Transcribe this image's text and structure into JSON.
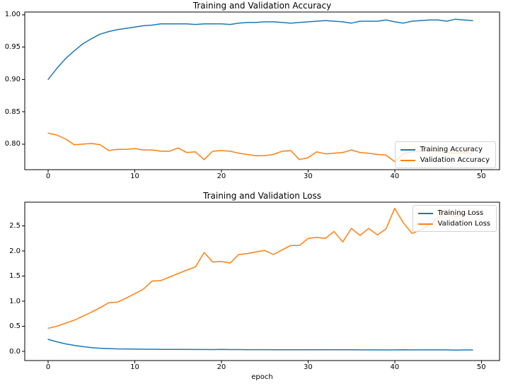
{
  "figure": {
    "background": "#ffffff",
    "accent_blue": "#1f77b4",
    "accent_orange": "#ff7f0e"
  },
  "chart_data": [
    {
      "type": "line",
      "title": "Training and Validation Accuracy",
      "xlabel": "",
      "ylabel": "",
      "x": [
        0,
        1,
        2,
        3,
        4,
        5,
        6,
        7,
        8,
        9,
        10,
        11,
        12,
        13,
        14,
        15,
        16,
        17,
        18,
        19,
        20,
        21,
        22,
        23,
        24,
        25,
        26,
        27,
        28,
        29,
        30,
        31,
        32,
        33,
        34,
        35,
        36,
        37,
        38,
        39,
        40,
        41,
        42,
        43,
        44,
        45,
        46,
        47,
        48,
        49
      ],
      "series": [
        {
          "name": "Training Accuracy",
          "color": "#1f77b4",
          "values": [
            0.9,
            0.917,
            0.932,
            0.944,
            0.955,
            0.963,
            0.97,
            0.974,
            0.977,
            0.979,
            0.981,
            0.983,
            0.984,
            0.986,
            0.986,
            0.986,
            0.986,
            0.985,
            0.986,
            0.986,
            0.986,
            0.985,
            0.987,
            0.988,
            0.988,
            0.989,
            0.989,
            0.988,
            0.987,
            0.988,
            0.989,
            0.99,
            0.991,
            0.99,
            0.989,
            0.987,
            0.99,
            0.99,
            0.99,
            0.992,
            0.989,
            0.987,
            0.99,
            0.991,
            0.992,
            0.992,
            0.99,
            0.993,
            0.992,
            0.991
          ]
        },
        {
          "name": "Validation Accuracy",
          "color": "#ff7f0e",
          "values": [
            0.817,
            0.814,
            0.808,
            0.799,
            0.8,
            0.801,
            0.799,
            0.79,
            0.792,
            0.792,
            0.793,
            0.791,
            0.791,
            0.789,
            0.789,
            0.794,
            0.787,
            0.788,
            0.776,
            0.789,
            0.79,
            0.789,
            0.786,
            0.784,
            0.782,
            0.782,
            0.784,
            0.789,
            0.79,
            0.776,
            0.779,
            0.788,
            0.785,
            0.786,
            0.787,
            0.791,
            0.787,
            0.786,
            0.784,
            0.783,
            0.773,
            0.785,
            0.788,
            0.789,
            0.79,
            0.789,
            0.787,
            0.786,
            0.787,
            0.786
          ]
        }
      ],
      "xlim": [
        -2.7,
        52.1
      ],
      "ylim": [
        0.7605,
        1.0042
      ],
      "xticks": [
        0,
        10,
        20,
        30,
        40,
        50
      ],
      "xtick_labels": [
        "0",
        "10",
        "20",
        "30",
        "40",
        "50"
      ],
      "yticks": [
        0.8,
        0.85,
        0.9,
        0.95,
        1.0
      ],
      "ytick_labels": [
        "0.80",
        "0.85",
        "0.90",
        "0.95",
        "1.00"
      ],
      "grid": false,
      "legend_position": "lower right"
    },
    {
      "type": "line",
      "title": "Training and Validation Loss",
      "xlabel": "epoch",
      "ylabel": "",
      "x": [
        0,
        1,
        2,
        3,
        4,
        5,
        6,
        7,
        8,
        9,
        10,
        11,
        12,
        13,
        14,
        15,
        16,
        17,
        18,
        19,
        20,
        21,
        22,
        23,
        24,
        25,
        26,
        27,
        28,
        29,
        30,
        31,
        32,
        33,
        34,
        35,
        36,
        37,
        38,
        39,
        40,
        41,
        42,
        43,
        44,
        45,
        46,
        47,
        48,
        49
      ],
      "series": [
        {
          "name": "Training Loss",
          "color": "#1f77b4",
          "values": [
            0.24,
            0.19,
            0.15,
            0.12,
            0.095,
            0.075,
            0.062,
            0.055,
            0.05,
            0.048,
            0.045,
            0.043,
            0.042,
            0.04,
            0.04,
            0.038,
            0.038,
            0.037,
            0.037,
            0.036,
            0.038,
            0.036,
            0.035,
            0.034,
            0.034,
            0.034,
            0.033,
            0.033,
            0.032,
            0.032,
            0.031,
            0.031,
            0.034,
            0.031,
            0.031,
            0.033,
            0.03,
            0.03,
            0.03,
            0.028,
            0.03,
            0.033,
            0.03,
            0.029,
            0.029,
            0.029,
            0.029,
            0.026,
            0.028,
            0.028
          ]
        },
        {
          "name": "Validation Loss",
          "color": "#ff7f0e",
          "values": [
            0.46,
            0.5,
            0.56,
            0.62,
            0.7,
            0.78,
            0.87,
            0.97,
            0.98,
            1.06,
            1.15,
            1.24,
            1.4,
            1.41,
            1.48,
            1.55,
            1.62,
            1.68,
            1.97,
            1.78,
            1.79,
            1.76,
            1.93,
            1.95,
            1.98,
            2.01,
            1.93,
            2.02,
            2.11,
            2.11,
            2.25,
            2.27,
            2.25,
            2.39,
            2.18,
            2.45,
            2.31,
            2.45,
            2.32,
            2.44,
            2.85,
            2.56,
            2.35,
            2.42,
            2.52,
            2.66,
            2.8,
            2.68,
            2.74,
            2.78
          ]
        }
      ],
      "xlim": [
        -2.7,
        52.1
      ],
      "ylim": [
        -0.183,
        2.972
      ],
      "xticks": [
        0,
        10,
        20,
        30,
        40,
        50
      ],
      "xtick_labels": [
        "0",
        "10",
        "20",
        "30",
        "40",
        "50"
      ],
      "yticks": [
        0.0,
        0.5,
        1.0,
        1.5,
        2.0,
        2.5
      ],
      "ytick_labels": [
        "0.0",
        "0.5",
        "1.0",
        "1.5",
        "2.0",
        "2.5"
      ],
      "grid": false,
      "legend_position": "upper right"
    }
  ]
}
